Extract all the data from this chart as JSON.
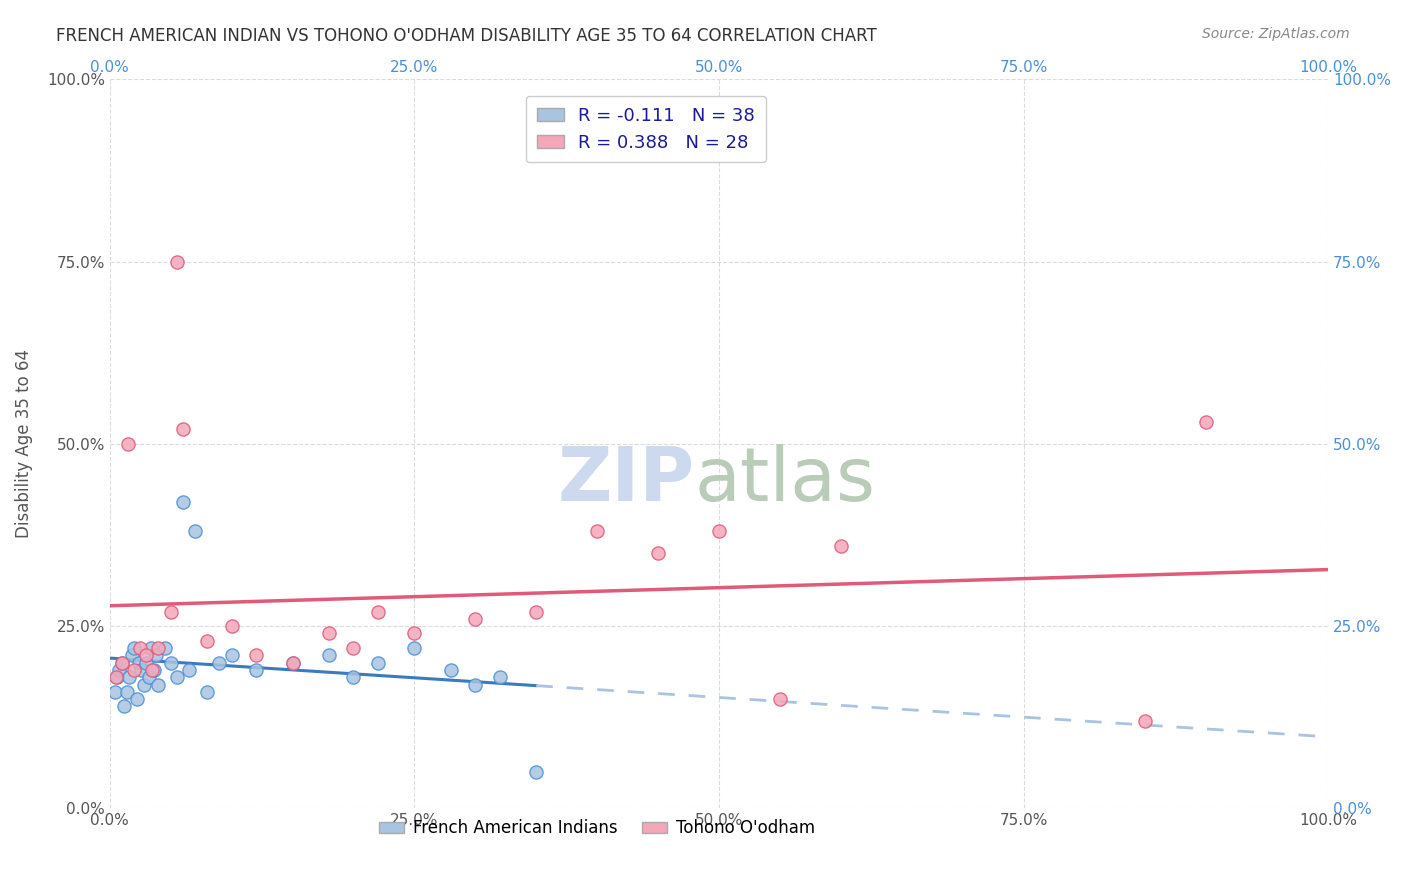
{
  "title": "FRENCH AMERICAN INDIAN VS TOHONO O'ODHAM DISABILITY AGE 35 TO 64 CORRELATION CHART",
  "source": "Source: ZipAtlas.com",
  "ylabel": "Disability Age 35 to 64",
  "xlim": [
    0,
    1.0
  ],
  "ylim": [
    0,
    1.0
  ],
  "x_ticks": [
    0.0,
    0.25,
    0.5,
    0.75,
    1.0
  ],
  "y_ticks": [
    0.0,
    0.25,
    0.5,
    0.75,
    1.0
  ],
  "x_tick_labels": [
    "0.0%",
    "25.0%",
    "50.0%",
    "75.0%",
    "100.0%"
  ],
  "y_tick_labels": [
    "0.0%",
    "25.0%",
    "50.0%",
    "75.0%",
    "100.0%"
  ],
  "blue_fill": "#a8c4e0",
  "pink_fill": "#f4a7b9",
  "blue_edge": "#4a90d9",
  "pink_edge": "#e05a7a",
  "blue_line": "#3a7abf",
  "pink_line": "#e05a7a",
  "legend_r1": "R = -0.111",
  "legend_n1": "N = 38",
  "legend_r2": "R = 0.388",
  "legend_n2": "N = 28",
  "legend_label1": "French American Indians",
  "legend_label2": "Tohono O'odham",
  "grid_color": "#cccccc",
  "title_color": "#333333",
  "source_color": "#888888",
  "ylabel_color": "#555555",
  "tick_color": "#555555",
  "right_tick_color": "#4a90d9",
  "legend_text_color": "#1a1a9a",
  "watermark_zip_color": "#ccd9ee",
  "watermark_atlas_color": "#b8ccb8",
  "blue_scatter_x": [
    0.004,
    0.006,
    0.008,
    0.01,
    0.012,
    0.014,
    0.016,
    0.018,
    0.02,
    0.022,
    0.024,
    0.026,
    0.028,
    0.03,
    0.032,
    0.034,
    0.036,
    0.038,
    0.04,
    0.045,
    0.05,
    0.055,
    0.06,
    0.065,
    0.07,
    0.08,
    0.09,
    0.1,
    0.12,
    0.15,
    0.18,
    0.2,
    0.22,
    0.25,
    0.28,
    0.3,
    0.32,
    0.35
  ],
  "blue_scatter_y": [
    0.16,
    0.18,
    0.19,
    0.2,
    0.14,
    0.16,
    0.18,
    0.21,
    0.22,
    0.15,
    0.2,
    0.19,
    0.17,
    0.2,
    0.18,
    0.22,
    0.19,
    0.21,
    0.17,
    0.22,
    0.2,
    0.18,
    0.42,
    0.19,
    0.38,
    0.16,
    0.2,
    0.21,
    0.19,
    0.2,
    0.21,
    0.18,
    0.2,
    0.22,
    0.19,
    0.17,
    0.18,
    0.05
  ],
  "pink_scatter_x": [
    0.005,
    0.01,
    0.015,
    0.02,
    0.025,
    0.03,
    0.035,
    0.04,
    0.05,
    0.055,
    0.06,
    0.08,
    0.1,
    0.12,
    0.15,
    0.18,
    0.2,
    0.22,
    0.25,
    0.3,
    0.35,
    0.4,
    0.45,
    0.5,
    0.55,
    0.6,
    0.85,
    0.9
  ],
  "pink_scatter_y": [
    0.18,
    0.2,
    0.5,
    0.19,
    0.22,
    0.21,
    0.19,
    0.22,
    0.27,
    0.75,
    0.52,
    0.23,
    0.25,
    0.21,
    0.2,
    0.24,
    0.22,
    0.27,
    0.24,
    0.26,
    0.27,
    0.38,
    0.35,
    0.38,
    0.15,
    0.36,
    0.12,
    0.53
  ]
}
